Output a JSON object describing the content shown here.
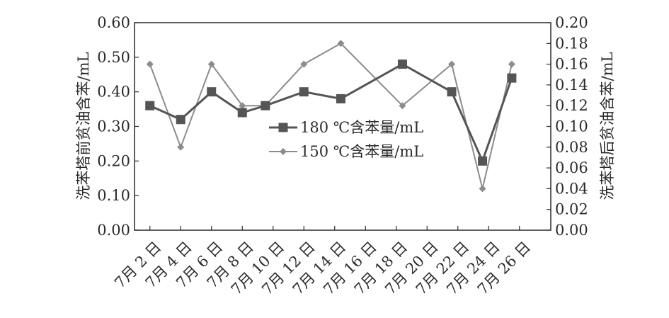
{
  "chart_data": {
    "type": "line",
    "categories": [
      "7月 2 日",
      "7月 4 日",
      "7月 6 日",
      "7月 8 日",
      "7月 10 日",
      "7月 12 日",
      "7月 14 日",
      "7月 16 日",
      "7月 18 日",
      "7月 20 日",
      "7月 22 日",
      "7月 24 日",
      "7月 26 日"
    ],
    "y_left": {
      "label": "洗苯塔前贫油含苯/mL",
      "ylim": [
        0,
        0.6
      ],
      "ticks": [
        "0.00",
        "0.10",
        "0.20",
        "0.30",
        "0.40",
        "0.50",
        "0.60"
      ]
    },
    "y_right": {
      "label": "洗苯塔后贫油含苯/mL",
      "ylim": [
        0,
        0.2
      ],
      "ticks": [
        "0.00",
        "0.02",
        "0.04",
        "0.06",
        "0.08",
        "0.10",
        "0.12",
        "0.14",
        "0.16",
        "0.18",
        "0.20"
      ]
    },
    "series": [
      {
        "name": "180 ℃含苯量/mL",
        "axis": "left",
        "marker": "square",
        "color": "#555555",
        "points": [
          {
            "x": 1.0,
            "y": 0.36
          },
          {
            "x": 2.0,
            "y": 0.32
          },
          {
            "x": 3.0,
            "y": 0.4
          },
          {
            "x": 4.0,
            "y": 0.34
          },
          {
            "x": 4.75,
            "y": 0.36
          },
          {
            "x": 6.0,
            "y": 0.4
          },
          {
            "x": 7.2,
            "y": 0.38
          },
          {
            "x": 9.2,
            "y": 0.48
          },
          {
            "x": 10.8,
            "y": 0.4
          },
          {
            "x": 11.8,
            "y": 0.2
          },
          {
            "x": 12.75,
            "y": 0.44
          }
        ]
      },
      {
        "name": "150 ℃含苯量/mL",
        "axis": "right",
        "marker": "diamond",
        "color": "#8c8c8c",
        "points": [
          {
            "x": 1.0,
            "y": 0.16
          },
          {
            "x": 2.0,
            "y": 0.08
          },
          {
            "x": 3.0,
            "y": 0.16
          },
          {
            "x": 4.0,
            "y": 0.12
          },
          {
            "x": 4.75,
            "y": 0.12
          },
          {
            "x": 6.0,
            "y": 0.16
          },
          {
            "x": 7.2,
            "y": 0.18
          },
          {
            "x": 9.2,
            "y": 0.12
          },
          {
            "x": 10.8,
            "y": 0.16
          },
          {
            "x": 11.8,
            "y": 0.04
          },
          {
            "x": 12.75,
            "y": 0.16
          }
        ]
      }
    ],
    "grid": false,
    "legend_position": "center"
  }
}
